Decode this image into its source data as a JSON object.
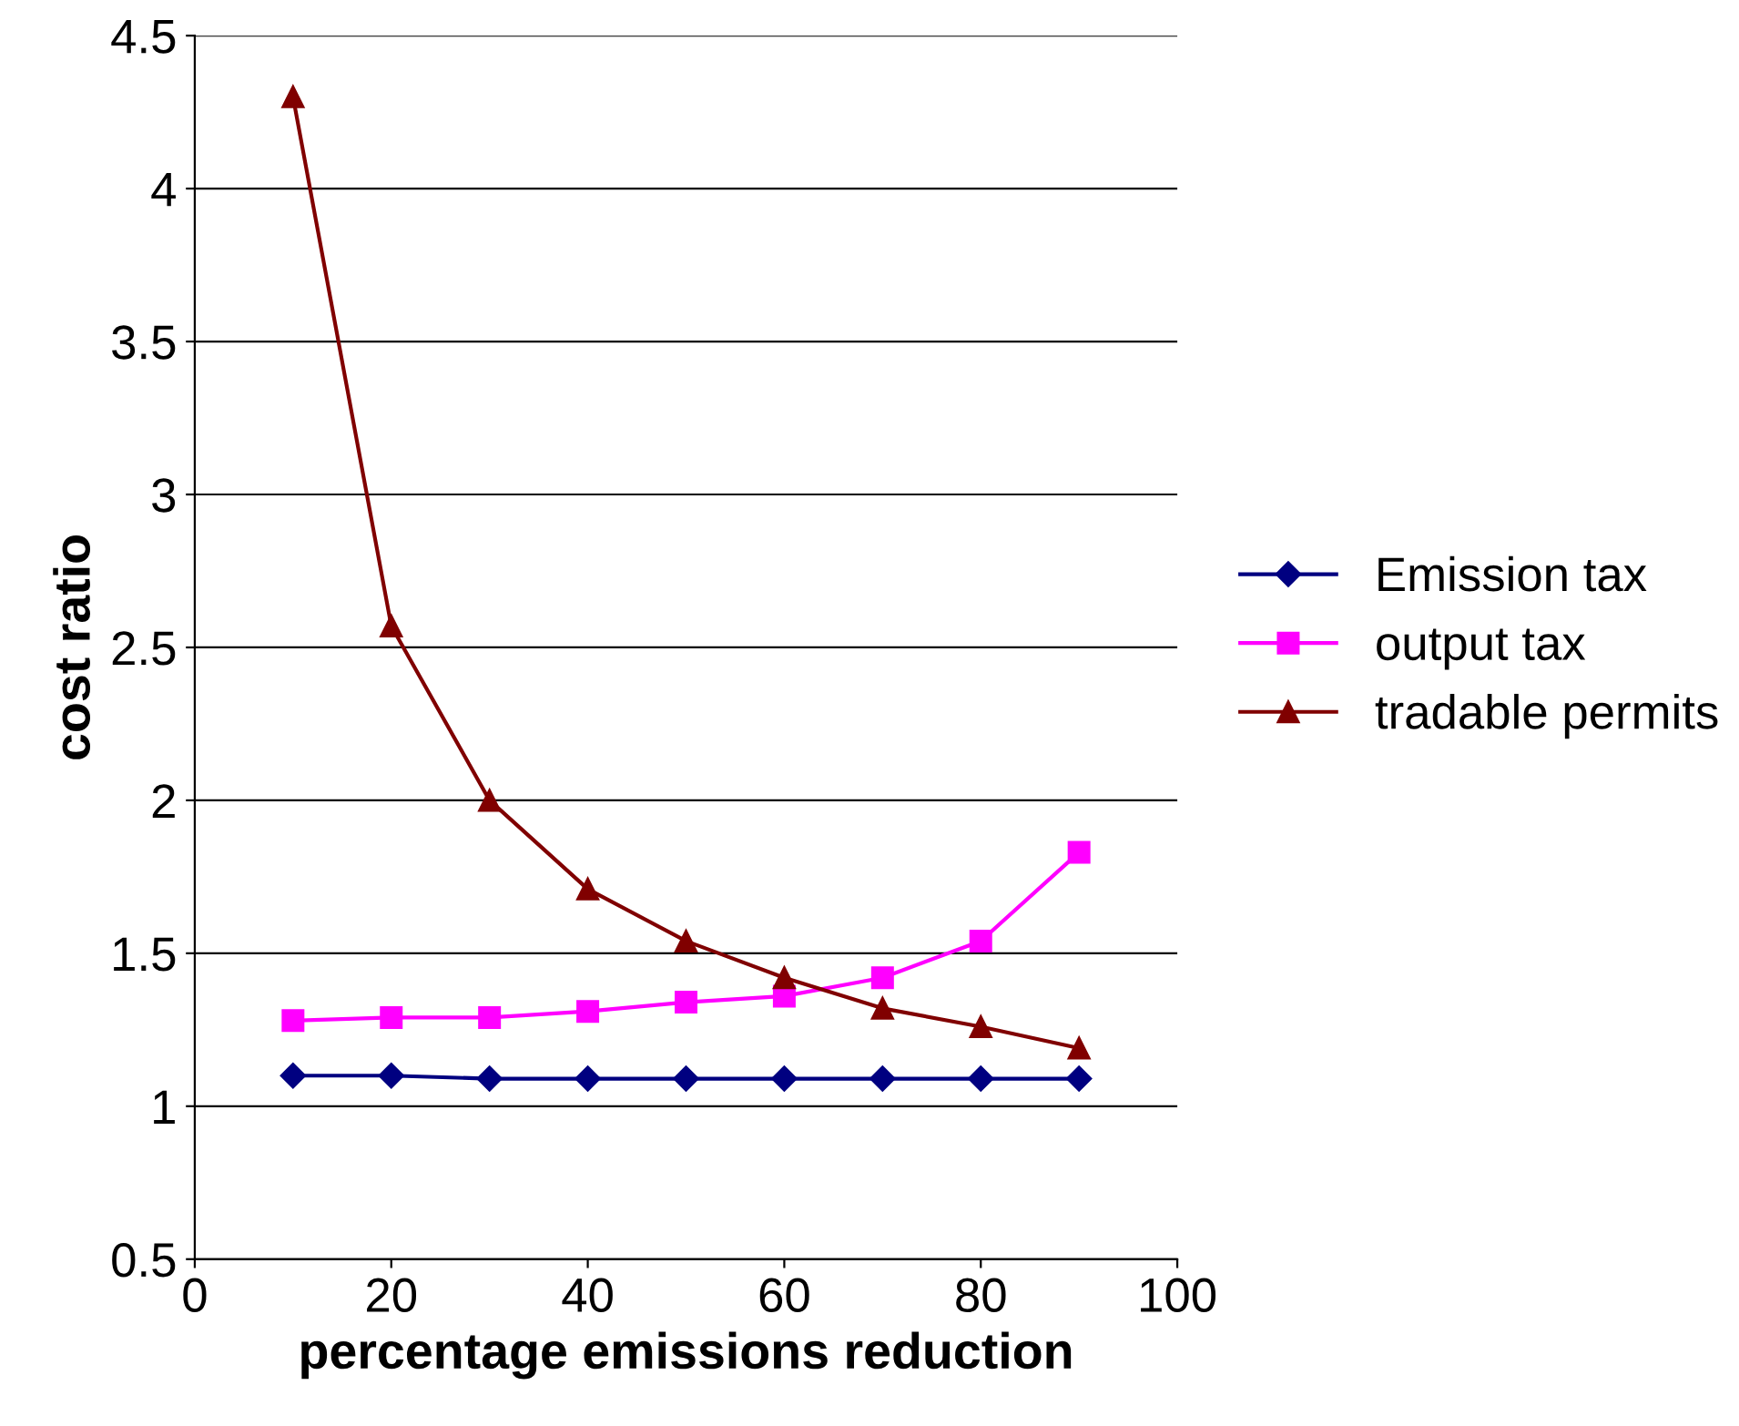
{
  "chart_data": {
    "type": "line",
    "xlabel": "percentage emissions reduction",
    "ylabel": "cost ratio",
    "x": [
      10,
      20,
      30,
      40,
      50,
      60,
      70,
      80,
      90
    ],
    "series": [
      {
        "name": "Emission tax",
        "color": "#000080",
        "marker": "diamond",
        "values": [
          1.1,
          1.1,
          1.09,
          1.09,
          1.09,
          1.09,
          1.09,
          1.09,
          1.09
        ]
      },
      {
        "name": "output tax",
        "color": "#ff00ff",
        "marker": "square",
        "values": [
          1.28,
          1.29,
          1.29,
          1.31,
          1.34,
          1.36,
          1.42,
          1.54,
          1.83
        ]
      },
      {
        "name": "tradable permits",
        "color": "#800000",
        "marker": "triangle",
        "values": [
          4.3,
          2.57,
          2.0,
          1.71,
          1.54,
          1.42,
          1.32,
          1.26,
          1.19
        ]
      }
    ],
    "xlim": [
      0,
      100
    ],
    "xticks": [
      0,
      20,
      40,
      60,
      80,
      100
    ],
    "ylim": [
      0.5,
      4.5
    ],
    "yticks": [
      0.5,
      1,
      1.5,
      2,
      2.5,
      3,
      3.5,
      4,
      4.5
    ],
    "grid": "y",
    "legend": "right",
    "line_style": "solid"
  }
}
